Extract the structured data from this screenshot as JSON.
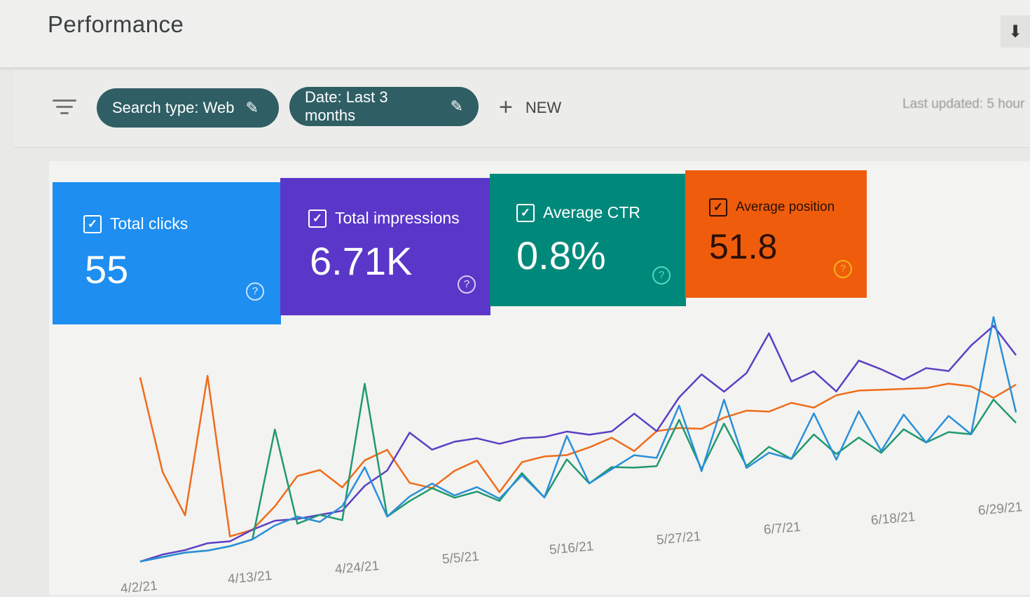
{
  "header": {
    "title": "Performance",
    "download_icon": "download-icon"
  },
  "filters": {
    "chips": [
      {
        "label": "Search type: Web",
        "icon": "pencil-icon"
      },
      {
        "label": "Date: Last 3 months",
        "icon": "pencil-icon"
      }
    ],
    "new_label": "NEW",
    "last_updated": "Last updated: 5 hour"
  },
  "metrics": [
    {
      "label": "Total clicks",
      "value": "55",
      "color": "#1e8ef0",
      "checked": true
    },
    {
      "label": "Total impressions",
      "value": "6.71K",
      "color": "#5a37c9",
      "checked": true
    },
    {
      "label": "Average CTR",
      "value": "0.8%",
      "color": "#00897b",
      "checked": true
    },
    {
      "label": "Average position",
      "value": "51.8",
      "color": "#ef5c0c",
      "checked": true
    }
  ],
  "chart_data": {
    "type": "line",
    "x_ticks": [
      "4/2/21",
      "4/13/21",
      "4/24/21",
      "5/5/21",
      "5/16/21",
      "5/27/21",
      "6/7/21",
      "6/18/21",
      "6/29/21"
    ],
    "x_range": [
      "4/2/21",
      "6/30/21"
    ],
    "grid": false,
    "y_axis_labels": false,
    "series": [
      {
        "color": "#ef6c1a",
        "values": [
          74,
          36,
          18,
          74,
          8,
          10,
          19,
          31,
          33,
          25,
          36,
          40,
          25,
          22,
          29,
          33,
          18,
          31,
          33,
          33,
          36,
          40,
          33,
          42,
          43,
          42,
          47,
          50,
          49,
          53,
          50,
          56,
          58,
          58,
          58,
          58,
          60,
          58,
          51,
          58
        ]
      },
      {
        "color": "#5b3fc4",
        "values": [
          1,
          3,
          4,
          6,
          6,
          10,
          13,
          13,
          14,
          15,
          25,
          31,
          47,
          39,
          42,
          43,
          40,
          42,
          42,
          44,
          42,
          43,
          51,
          42,
          58,
          69,
          60,
          69,
          89,
          64,
          69,
          58,
          74,
          69,
          63,
          69,
          67,
          81,
          92,
          75
        ]
      },
      {
        "color": "#1f9a6e",
        "values": [
          1,
          2,
          3,
          3,
          4,
          6,
          51,
          11,
          14,
          11,
          69,
          11,
          17,
          22,
          17,
          19,
          14,
          26,
          14,
          31,
          19,
          26,
          25,
          25,
          47,
          22,
          44,
          22,
          31,
          24,
          36,
          25,
          33,
          24,
          36,
          28,
          33,
          31,
          50,
          36
        ]
      },
      {
        "color": "#2a8fd8",
        "values": [
          1,
          2,
          3,
          3,
          4,
          6,
          11,
          14,
          11,
          17,
          33,
          11,
          19,
          24,
          18,
          21,
          15,
          25,
          14,
          42,
          19,
          25,
          31,
          29,
          54,
          21,
          56,
          21,
          28,
          24,
          47,
          22,
          47,
          25,
          44,
          28,
          42,
          31,
          97,
          42
        ]
      }
    ]
  }
}
